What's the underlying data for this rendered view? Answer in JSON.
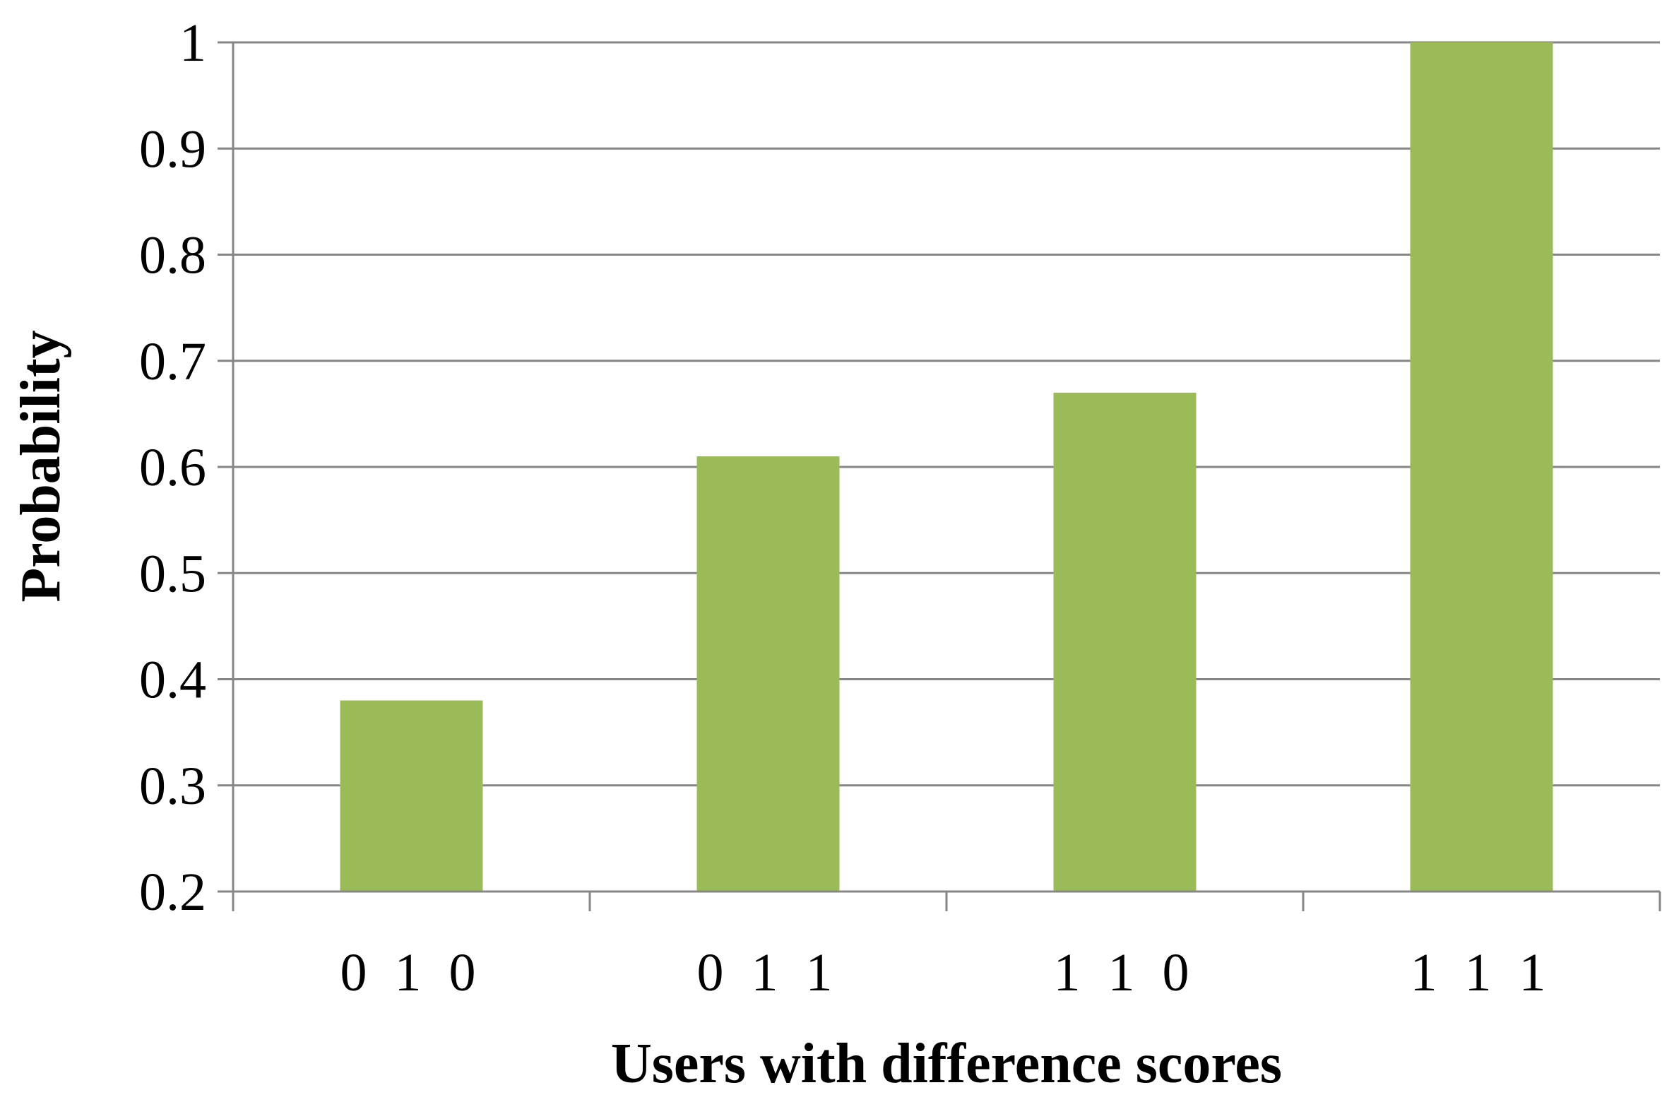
{
  "chart_data": {
    "type": "bar",
    "categories": [
      "0 1 0",
      "0 1 1",
      "1 1 0",
      "1 1 1"
    ],
    "values": [
      0.38,
      0.61,
      0.67,
      1.0
    ],
    "title": "",
    "xlabel": "Users with difference scores",
    "ylabel": "Probability",
    "ylim": [
      0.2,
      1
    ],
    "yticks": [
      "0.2",
      "0.3",
      "0.4",
      "0.5",
      "0.6",
      "0.7",
      "0.8",
      "0.9",
      "1"
    ],
    "grid": true,
    "legend": "none",
    "bar_color": "#9bbb59",
    "gridline_color": "#868686"
  }
}
